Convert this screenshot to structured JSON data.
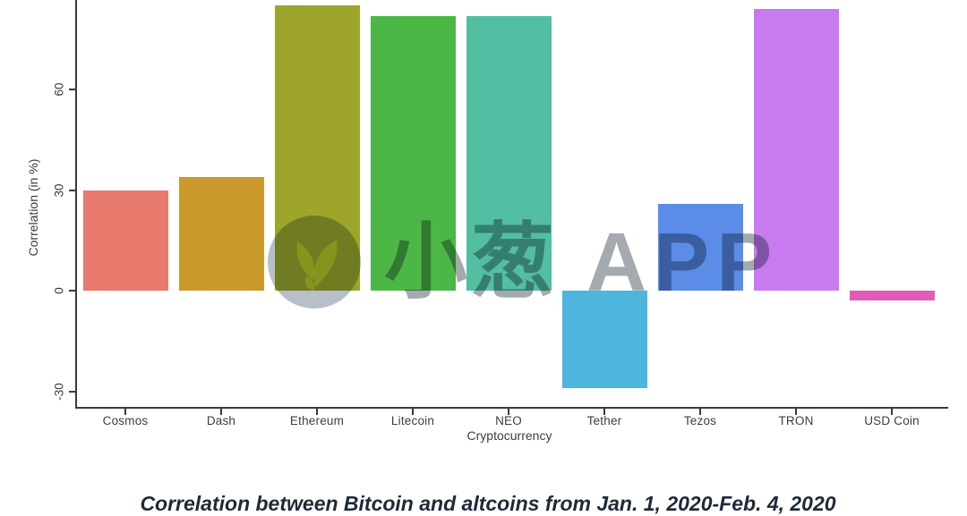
{
  "chart_data": {
    "type": "bar",
    "title": "",
    "xlabel": "Cryptocurrency",
    "ylabel": "Correlation (in %)",
    "categories": [
      "Cosmos",
      "Dash",
      "Ethereum",
      "Litecoin",
      "NEO",
      "Tether",
      "Tezos",
      "TRON",
      "USD Coin"
    ],
    "values": [
      30,
      34,
      85,
      82,
      82,
      -29,
      26,
      84,
      -3
    ],
    "colors": [
      "#E8796D",
      "#C9992B",
      "#9DA62B",
      "#4CB747",
      "#53BFA2",
      "#4DB5DE",
      "#5B8DE8",
      "#C77BEE",
      "#E25CB4"
    ],
    "yticks": [
      60,
      30,
      0,
      -30
    ],
    "ylim": [
      -33,
      87
    ],
    "grid": false,
    "legend": false
  },
  "watermark": {
    "logo": "sprout-logo",
    "text_cn": "小葱",
    "text_en": "APP"
  },
  "caption": "Correlation between Bitcoin and altcoins from Jan. 1, 2020-Feb. 4, 2020"
}
